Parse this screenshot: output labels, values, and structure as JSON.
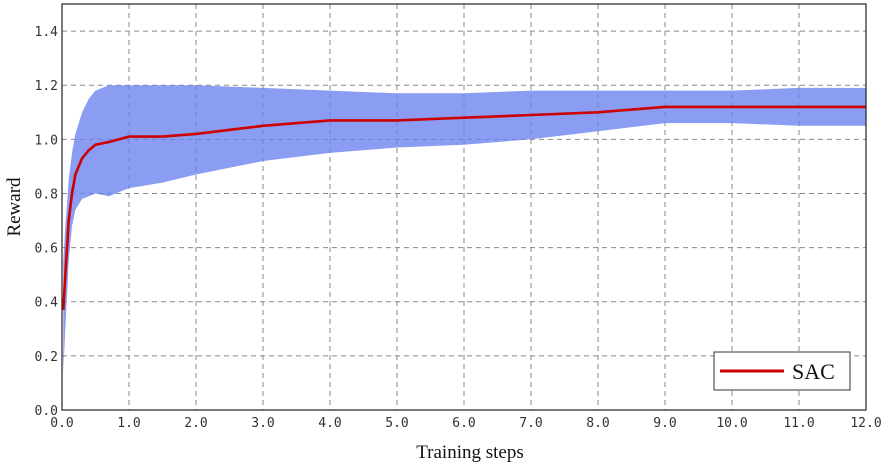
{
  "chart_data": {
    "type": "line",
    "title": "",
    "xlabel": "Training steps",
    "ylabel": "Reward",
    "xlim": [
      0,
      12
    ],
    "ylim": [
      0,
      1.5
    ],
    "xticks": [
      0,
      1,
      2,
      3,
      4,
      5,
      6,
      7,
      8,
      9,
      10,
      11,
      12
    ],
    "xtick_labels": [
      "0.0",
      "1.0",
      "2.0",
      "3.0",
      "4.0",
      "5.0",
      "6.0",
      "7.0",
      "8.0",
      "9.0",
      "10.0",
      "11.0",
      "12.0"
    ],
    "yticks": [
      0,
      0.2,
      0.4,
      0.6,
      0.8,
      1.0,
      1.2,
      1.4
    ],
    "ytick_labels": [
      "0.0",
      "0.2",
      "0.4",
      "0.6",
      "0.8",
      "1.0",
      "1.2",
      "1.4"
    ],
    "grid": true,
    "legend": {
      "position": "bottom-right",
      "entries": [
        "SAC"
      ]
    },
    "series": [
      {
        "name": "SAC",
        "color": "#cc0000",
        "band_color": "#6a82f0",
        "x": [
          0.02,
          0.05,
          0.08,
          0.1,
          0.15,
          0.2,
          0.3,
          0.4,
          0.5,
          0.7,
          1.0,
          1.5,
          2.0,
          3.0,
          4.0,
          5.0,
          6.0,
          7.0,
          8.0,
          9.0,
          10.0,
          11.0,
          12.0
        ],
        "mean": [
          0.37,
          0.5,
          0.62,
          0.7,
          0.8,
          0.87,
          0.93,
          0.96,
          0.98,
          0.99,
          1.01,
          1.01,
          1.02,
          1.05,
          1.07,
          1.07,
          1.08,
          1.09,
          1.1,
          1.12,
          1.12,
          1.12,
          1.12
        ],
        "upper": [
          0.55,
          0.68,
          0.78,
          0.85,
          0.95,
          1.02,
          1.1,
          1.15,
          1.18,
          1.2,
          1.2,
          1.2,
          1.2,
          1.19,
          1.18,
          1.17,
          1.17,
          1.18,
          1.18,
          1.18,
          1.18,
          1.19,
          1.19
        ],
        "lower": [
          0.14,
          0.3,
          0.45,
          0.55,
          0.68,
          0.74,
          0.78,
          0.79,
          0.8,
          0.79,
          0.82,
          0.84,
          0.87,
          0.92,
          0.95,
          0.97,
          0.98,
          1.0,
          1.03,
          1.06,
          1.06,
          1.05,
          1.05
        ]
      }
    ]
  }
}
